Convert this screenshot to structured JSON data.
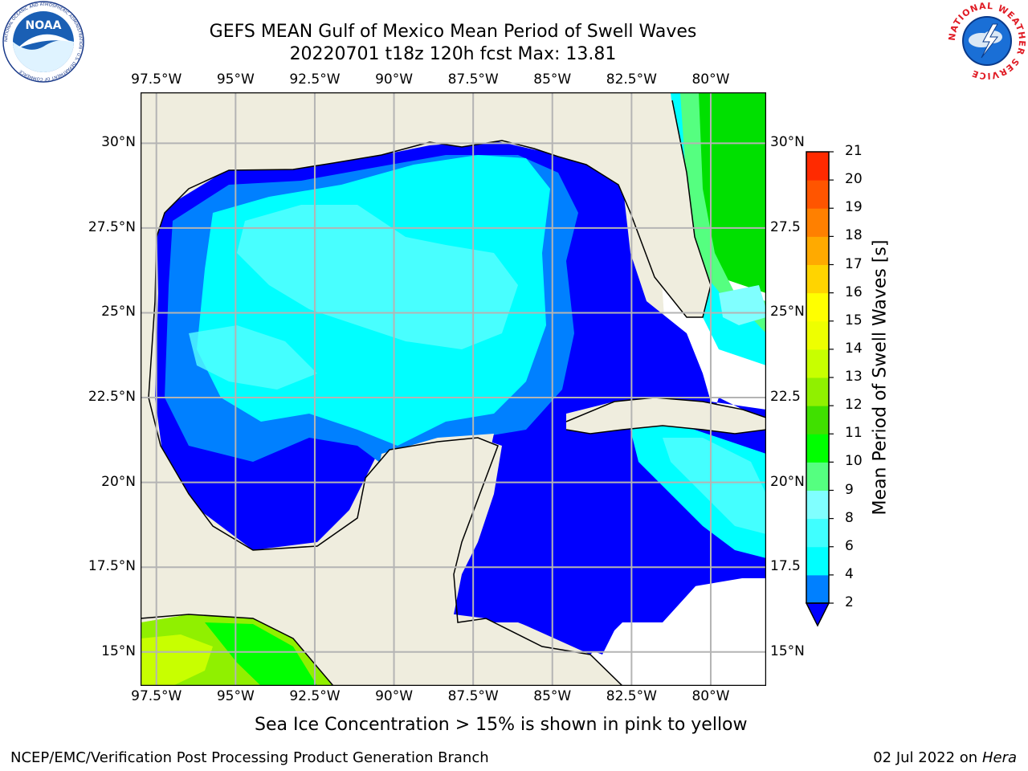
{
  "title_line1": "GEFS MEAN Gulf of Mexico Mean Period of Swell Waves",
  "title_line2": "20220701 t18z 120h fcst   Max: 13.81",
  "map": {
    "lon_labels": [
      "97.5°W",
      "95°W",
      "92.5°W",
      "90°W",
      "87.5°W",
      "85°W",
      "82.5°W",
      "80°W"
    ],
    "lat_labels_left": [
      "30°N",
      "27.5°N",
      "25°N",
      "22.5°N",
      "20°N",
      "17.5°N",
      "15°N"
    ],
    "lat_labels_right": [
      "30°N",
      "27.5",
      "25°N",
      "22.5",
      "20°N",
      "17.5",
      "15°N"
    ],
    "lon_range": [
      -98,
      -78.25
    ],
    "lat_range": [
      14,
      31.5
    ],
    "land_color": "#efedde",
    "grid_color": "#b4b4b4"
  },
  "colorbar": {
    "title": "Mean Period of Swell Waves [s]",
    "ticks": [
      "2",
      "4",
      "6",
      "8",
      "9",
      "10",
      "11",
      "12",
      "13",
      "14",
      "15",
      "16",
      "17",
      "18",
      "19",
      "20",
      "21"
    ],
    "colors": [
      "#0000ff",
      "#0080ff",
      "#00ffff",
      "#40ffff",
      "#80ffff",
      "#55ff80",
      "#00ff00",
      "#40e000",
      "#90f000",
      "#c8ff00",
      "#eeff00",
      "#ffff00",
      "#ffd400",
      "#ffaa00",
      "#ff8000",
      "#ff5500",
      "#ff2a00",
      "#ff0000"
    ]
  },
  "subtitle": "Sea Ice Concentration > 15% is shown in pink to yellow",
  "footer_left": "NCEP/EMC/Verification Post Processing Product Generation Branch",
  "footer_right_date": "02 Jul 2022 on ",
  "footer_right_host": "Hera",
  "logos": {
    "noaa_text": "NOAA",
    "noaa_ring": "NATIONAL OCEANIC AND ATMOSPHERIC ADMINISTRATION · U.S. DEPARTMENT OF COMMERCE",
    "nws_ring": "NATIONAL WEATHER SERVICE"
  }
}
